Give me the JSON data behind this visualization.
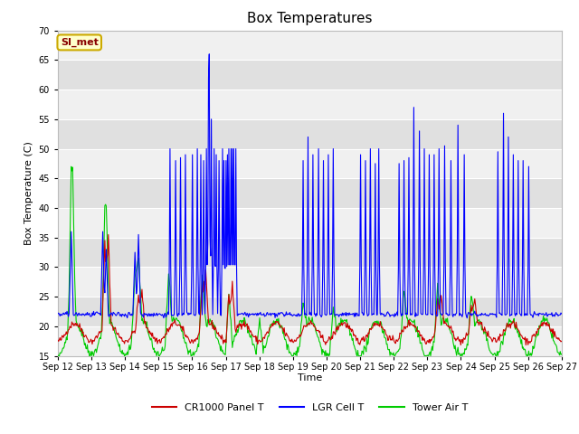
{
  "title": "Box Temperatures",
  "xlabel": "Time",
  "ylabel": "Box Temperature (C)",
  "ylim": [
    15,
    70
  ],
  "yticks": [
    15,
    20,
    25,
    30,
    35,
    40,
    45,
    50,
    55,
    60,
    65,
    70
  ],
  "x_tick_labels": [
    "Sep 12",
    "Sep 13",
    "Sep 14",
    "Sep 15",
    "Sep 16",
    "Sep 17",
    "Sep 18",
    "Sep 19",
    "Sep 20",
    "Sep 21",
    "Sep 22",
    "Sep 23",
    "Sep 24",
    "Sep 25",
    "Sep 26",
    "Sep 27"
  ],
  "colors": {
    "panel": "#cc0000",
    "cell": "#0000ff",
    "tower": "#00cc00",
    "fig_bg": "#ffffff",
    "plot_bg_light": "#f0f0f0",
    "plot_bg_dark": "#e0e0e0",
    "grid": "#ffffff",
    "annotation_bg": "#ffffcc",
    "annotation_border": "#ccaa00",
    "annotation_text": "#880000"
  },
  "legend_labels": [
    "CR1000 Panel T",
    "LGR Cell T",
    "Tower Air T"
  ],
  "annotation_text": "SI_met",
  "title_fontsize": 11,
  "label_fontsize": 8,
  "tick_fontsize": 7,
  "legend_fontsize": 8
}
